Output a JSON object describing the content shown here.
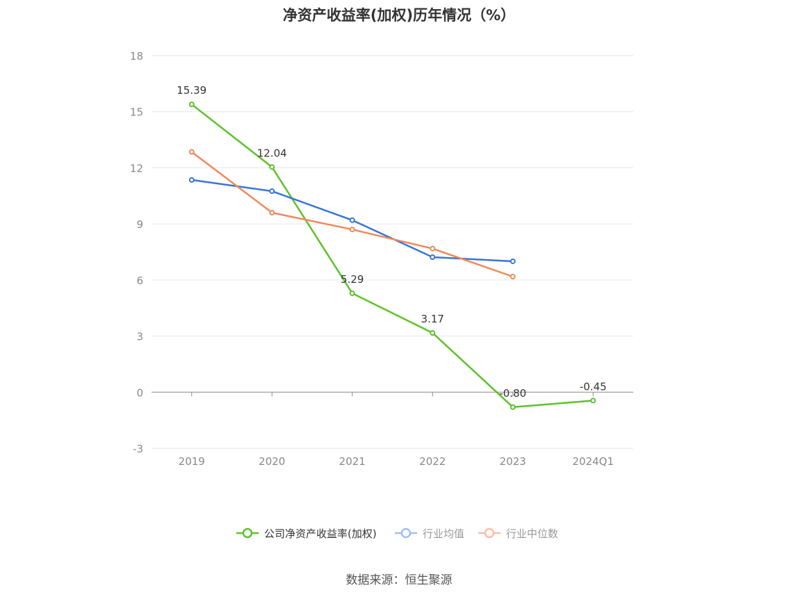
{
  "chart_data": {
    "type": "line",
    "title": "净资产收益率(加权)历年情况（%）",
    "categories": [
      "2019",
      "2020",
      "2021",
      "2022",
      "2023",
      "2024Q1"
    ],
    "ylim": [
      -3,
      18
    ],
    "yticks": [
      -3,
      0,
      3,
      6,
      9,
      12,
      15,
      18
    ],
    "grid": true,
    "legend_position": "bottom-center",
    "series": [
      {
        "name": "公司净资产收益率(加权)",
        "color": "#5ec12a",
        "show_labels": true,
        "values": [
          15.39,
          12.04,
          5.29,
          3.17,
          -0.8,
          -0.45
        ]
      },
      {
        "name": "行业均值",
        "color": "#3a74d8",
        "show_labels": false,
        "values": [
          11.35,
          10.75,
          9.2,
          7.22,
          7.0,
          null
        ]
      },
      {
        "name": "行业中位数",
        "color": "#f0885a",
        "show_labels": false,
        "values": [
          12.85,
          9.6,
          8.7,
          7.68,
          6.18,
          null
        ]
      }
    ],
    "legend_faded_color": {
      "行业均值": "#a3bfee",
      "行业中位数": "#f7bfa6"
    }
  },
  "source": "数据来源：恒生聚源"
}
